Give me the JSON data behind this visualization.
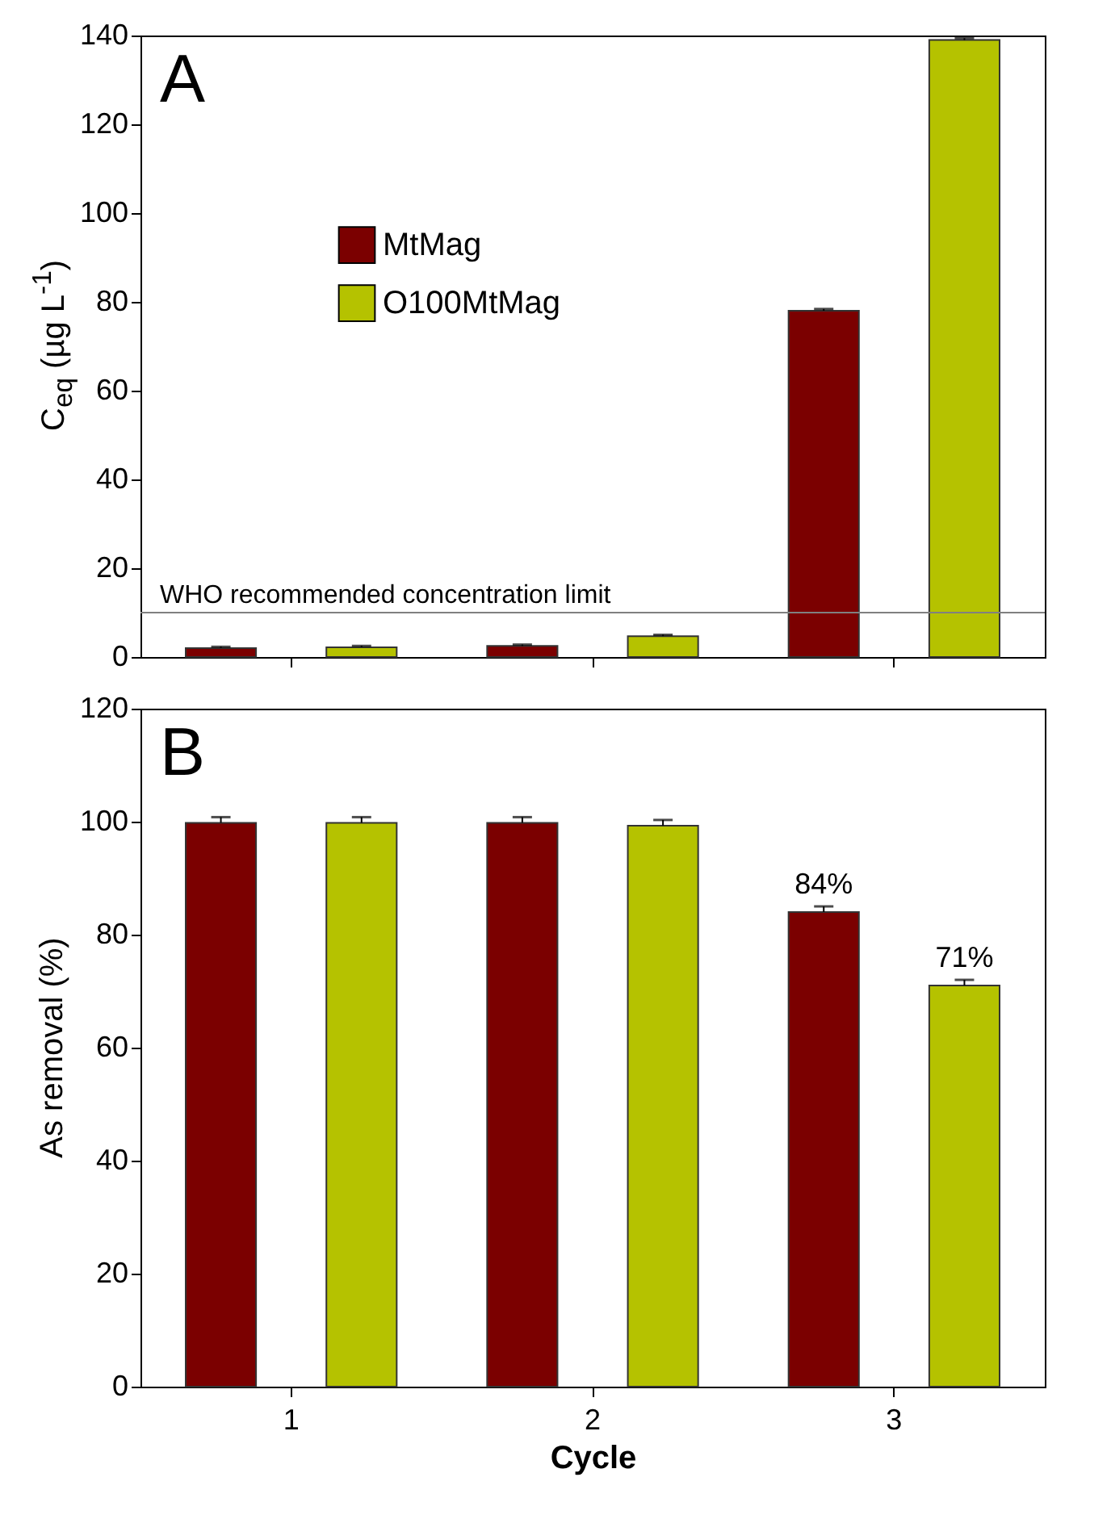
{
  "chart_data": [
    {
      "type": "bar",
      "annotations": [
        "A"
      ],
      "ylabel": "C$_{eq}$ (µg L$^{-1}$)",
      "categories": [
        "1",
        "2",
        "3"
      ],
      "series": [
        {
          "name": "MtMag",
          "color": "#7b0000",
          "values": [
            2.0,
            2.5,
            78
          ],
          "errors": [
            0.3,
            0.3,
            0.4
          ]
        },
        {
          "name": "O100MtMag",
          "color": "#b5c200",
          "values": [
            2.2,
            4.7,
            139
          ],
          "errors": [
            0.3,
            0.3,
            0.4
          ]
        }
      ],
      "ylim": [
        0,
        140
      ],
      "yticks": [
        0,
        20,
        40,
        60,
        80,
        100,
        120,
        140
      ],
      "tick_labels": "y",
      "legend": "top left",
      "ref_lines": [
        {
          "axis": "y",
          "value": 10,
          "label": "WHO recommended concentration limit",
          "color": "#808080"
        }
      ]
    },
    {
      "type": "bar",
      "annotations": [
        "B"
      ],
      "xlabel": "Cycle",
      "ylabel": "As removal (%)",
      "categories": [
        "1",
        "2",
        "3"
      ],
      "series": [
        {
          "color": "#7b0000",
          "values": [
            99.8,
            99.8,
            84
          ],
          "errors": [
            1,
            1,
            1
          ],
          "value_labels": [
            null,
            null,
            "84%"
          ]
        },
        {
          "color": "#b5c200",
          "values": [
            99.8,
            99.3,
            71
          ],
          "errors": [
            1,
            1,
            1
          ],
          "value_labels": [
            null,
            null,
            "71%"
          ]
        }
      ],
      "ylim": [
        0,
        120
      ],
      "yticks": [
        0,
        20,
        40,
        60,
        80,
        100,
        120
      ]
    }
  ]
}
